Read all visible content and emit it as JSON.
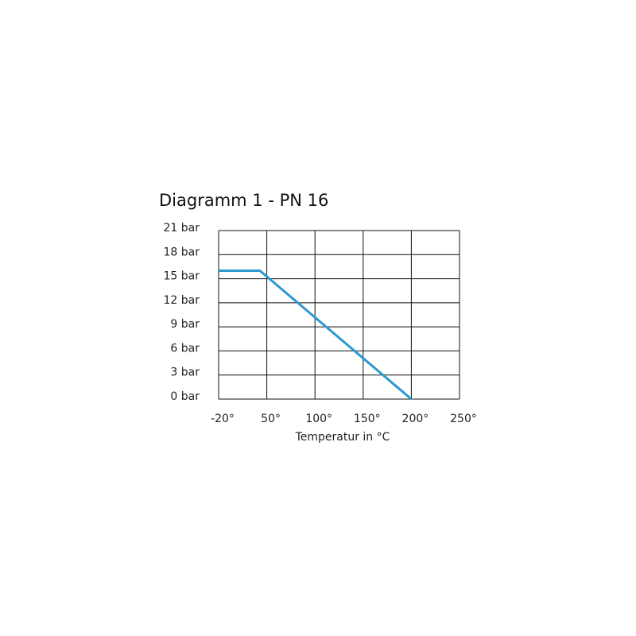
{
  "chart_data": {
    "type": "line",
    "title": "Diagramm 1 - PN 16",
    "x_label": "Temperatur in °C",
    "x": [
      -20,
      40,
      200
    ],
    "series": [
      {
        "name": "PN 16",
        "color": "#2a9ad0",
        "values": [
          16,
          16,
          0
        ]
      }
    ],
    "xlim": [
      -20,
      250
    ],
    "ylim": [
      0,
      21
    ],
    "xticks": [
      {
        "value": -20,
        "label": "-20°"
      },
      {
        "value": 50,
        "label": "50°"
      },
      {
        "value": 100,
        "label": "100°"
      },
      {
        "value": 150,
        "label": "150°"
      },
      {
        "value": 200,
        "label": "200°"
      },
      {
        "value": 250,
        "label": "250°"
      }
    ],
    "yticks": [
      {
        "value": 0,
        "label": "0 bar"
      },
      {
        "value": 3,
        "label": "3 bar"
      },
      {
        "value": 6,
        "label": "6 bar"
      },
      {
        "value": 9,
        "label": "9 bar"
      },
      {
        "value": 12,
        "label": "12 bar"
      },
      {
        "value": 15,
        "label": "15 bar"
      },
      {
        "value": 18,
        "label": "18 bar"
      },
      {
        "value": 21,
        "label": "21 bar"
      }
    ],
    "grid": true
  }
}
